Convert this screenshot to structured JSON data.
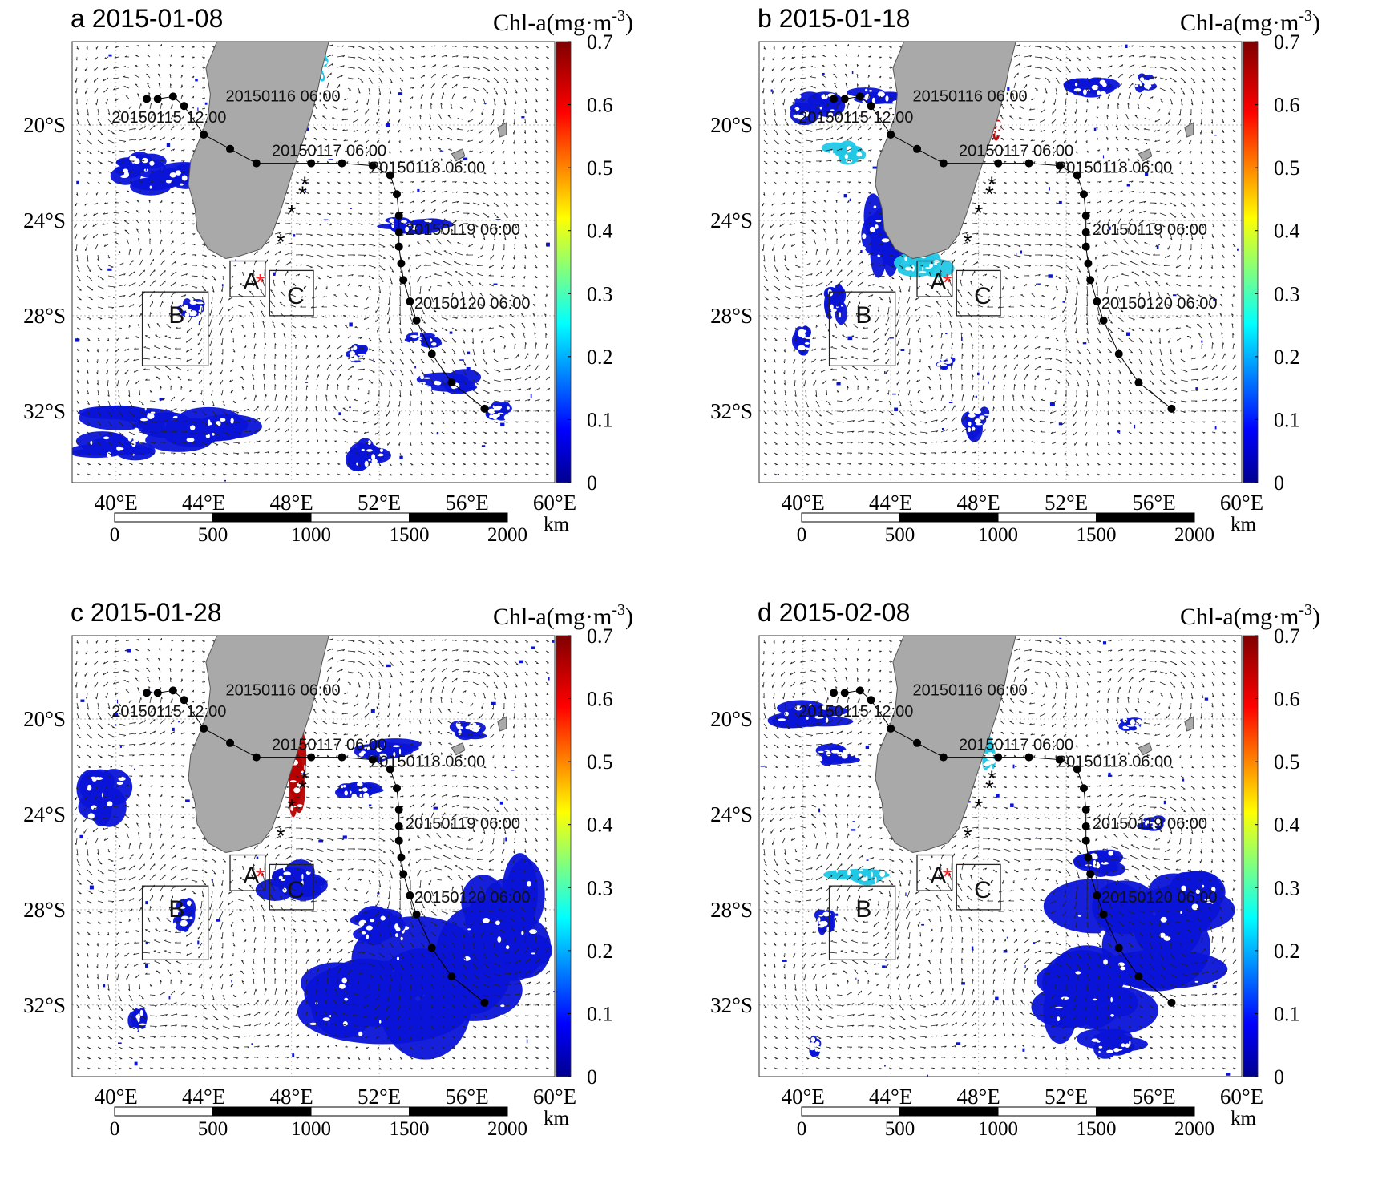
{
  "colorbar": {
    "title": "Chl-a(mg·m",
    "title_exp": "-3",
    "title_close": ")",
    "ticks": [
      "0",
      "0.1",
      "0.2",
      "0.3",
      "0.4",
      "0.5",
      "0.6",
      "0.7"
    ]
  },
  "axes": {
    "lon_labels": [
      "40°E",
      "44°E",
      "48°E",
      "52°E",
      "56°E",
      "60°E"
    ],
    "lat_labels": [
      "20°S",
      "24°S",
      "28°S",
      "32°S"
    ]
  },
  "scalebar": {
    "labels": [
      "0",
      "500",
      "1000",
      "1500",
      "2000"
    ],
    "unit": "km"
  },
  "track_labels": [
    "20150116 06:00",
    "20150115 12:00",
    "20150117 06:00",
    "20150118 06:00",
    "20150119 06:00",
    "20150120 06:00"
  ],
  "region_boxes": [
    "A",
    "B",
    "C"
  ],
  "colors": {
    "land": "#a9a9a9",
    "chl_low": "#0a14d8",
    "chl_mid": "#22c8e6",
    "chl_high": "#b80000",
    "track": "#000000",
    "star_marker": "#ff2020"
  },
  "panels": [
    {
      "title": "a 2015-01-08"
    },
    {
      "title": "b 2015-01-18"
    },
    {
      "title": "c 2015-01-28"
    },
    {
      "title": "d 2015-02-08"
    }
  ]
}
